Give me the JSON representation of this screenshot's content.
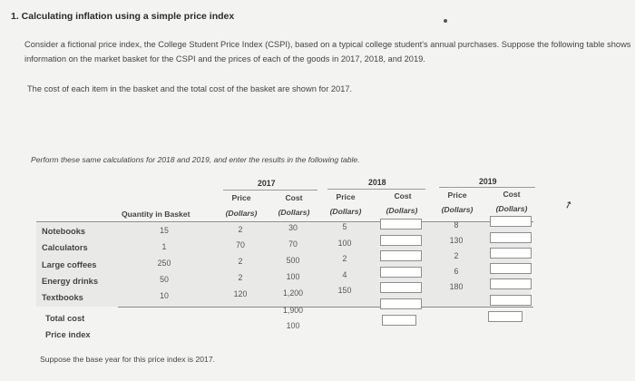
{
  "question": {
    "title": "1. Calculating inflation using a simple price index",
    "intro": "Consider a fictional price index, the College Student Price Index (CSPI), based on a typical college student's annual purchases. Suppose the following table shows information on the market basket for the CSPI and the prices of each of the goods in 2017, 2018, and 2019.",
    "cost_note": "The cost of each item in the basket and the total cost of the basket are shown for 2017.",
    "instruction": "Perform these same calculations for 2018 and 2019, and enter the results in the following table.",
    "base_year_note": "Suppose the base year for this price index is 2017."
  },
  "table": {
    "years": [
      "2017",
      "2018",
      "2019"
    ],
    "quantity_header": "Quantity in Basket",
    "price_header": "Price",
    "cost_header": "Cost",
    "dollars_label": "(Dollars)",
    "rows": [
      {
        "label": "Notebooks",
        "quantity": "15",
        "price_2017": "2",
        "cost_2017": "30",
        "price_2018": "5",
        "price_2019": "8"
      },
      {
        "label": "Calculators",
        "quantity": "1",
        "price_2017": "70",
        "cost_2017": "70",
        "price_2018": "100",
        "price_2019": "130"
      },
      {
        "label": "Large coffees",
        "quantity": "250",
        "price_2017": "2",
        "cost_2017": "500",
        "price_2018": "2",
        "price_2019": "2"
      },
      {
        "label": "Energy drinks",
        "quantity": "50",
        "price_2017": "2",
        "cost_2017": "100",
        "price_2018": "4",
        "price_2019": "6"
      },
      {
        "label": "Textbooks",
        "quantity": "10",
        "price_2017": "120",
        "cost_2017": "1,200",
        "price_2018": "150",
        "price_2019": "180"
      }
    ],
    "total_label": "Total cost",
    "total_2017": "1,900",
    "index_label": "Price index",
    "index_2017": "100"
  }
}
